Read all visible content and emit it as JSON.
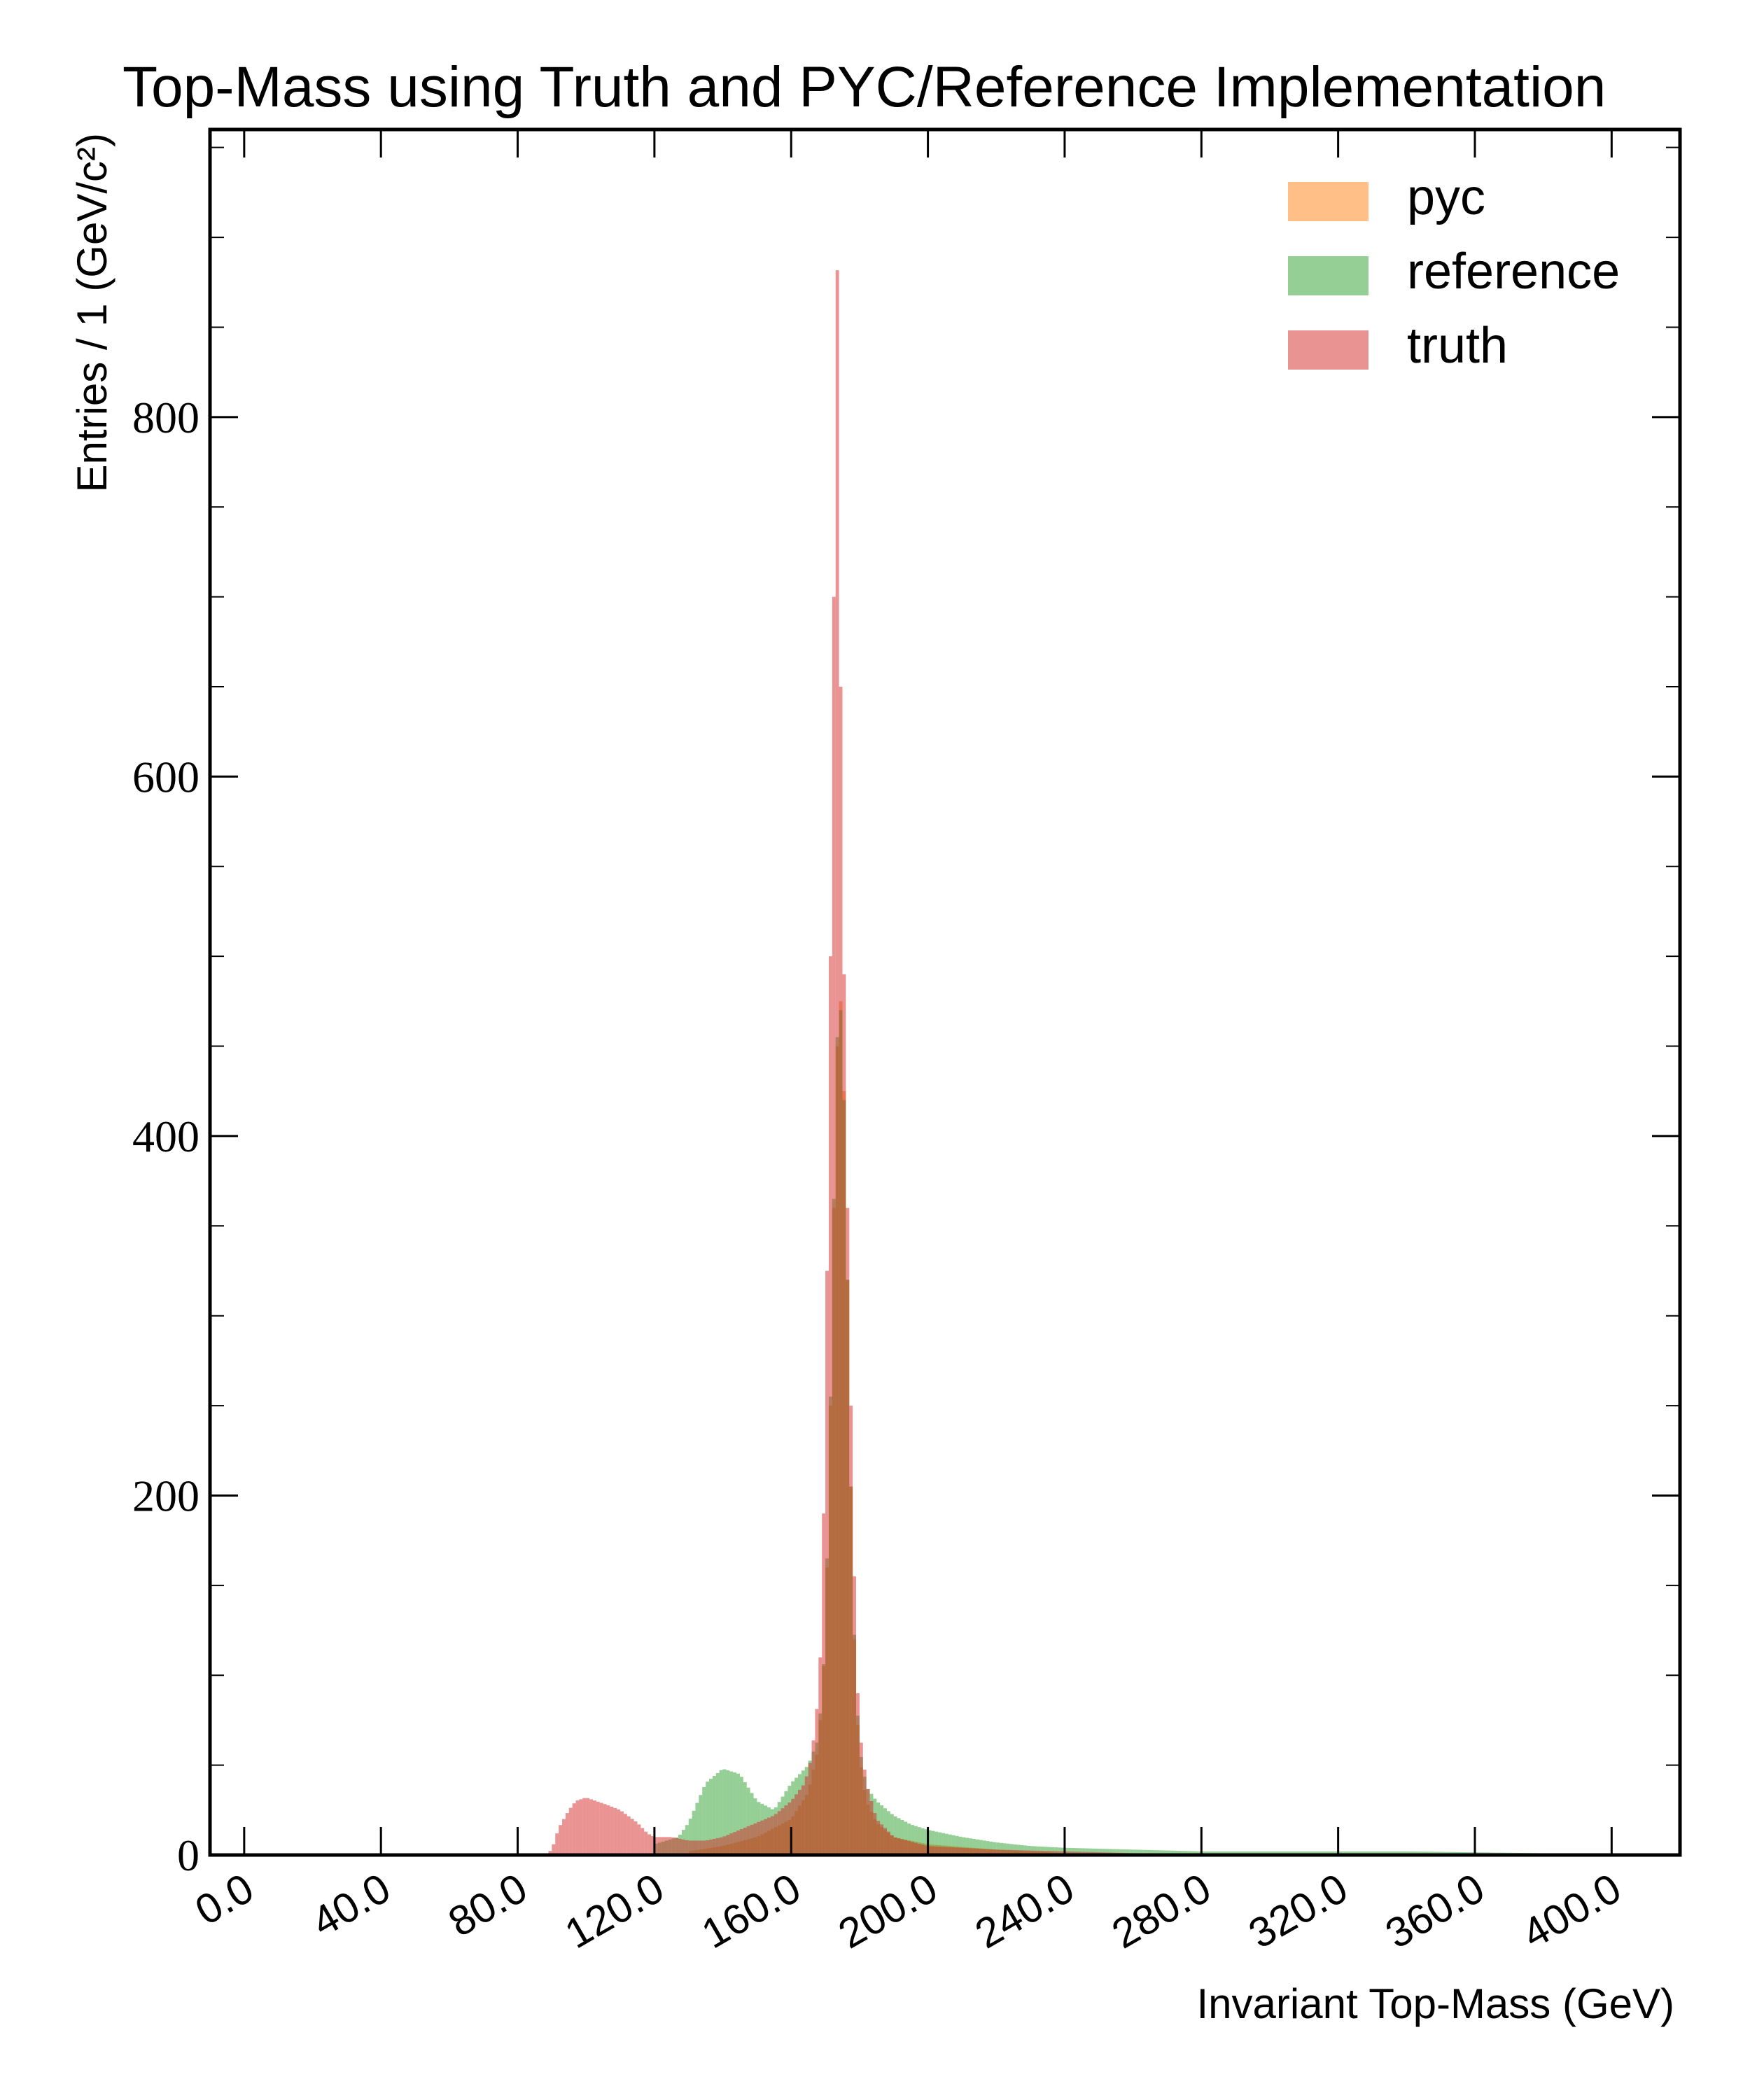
{
  "chart_data": {
    "type": "histogram",
    "title": "Top-Mass using Truth and PYC/Reference Implementation",
    "xlabel": "Invariant Top-Mass (GeV)",
    "ylabel": "Entries / 1 (GeV/c²)",
    "xlim": [
      -10,
      420
    ],
    "ylim": [
      0,
      960
    ],
    "xticks": [
      0,
      40,
      80,
      120,
      160,
      200,
      240,
      280,
      320,
      360,
      400
    ],
    "xtick_labels": [
      "0.0",
      "40.0",
      "80.0",
      "120.0",
      "160.0",
      "200.0",
      "240.0",
      "280.0",
      "320.0",
      "360.0",
      "400.0"
    ],
    "yticks": [
      0,
      200,
      400,
      600,
      800
    ],
    "ytick_labels": [
      "0",
      "200",
      "400",
      "600",
      "800"
    ],
    "bin_width": 1,
    "legend_position": "top-right",
    "grid": false,
    "series": [
      {
        "name": "pyc",
        "color": "#ff7f0e",
        "opacity": 0.5,
        "points": [
          [
            130,
            2
          ],
          [
            140,
            5
          ],
          [
            150,
            10
          ],
          [
            160,
            20
          ],
          [
            165,
            35
          ],
          [
            168,
            60
          ],
          [
            170,
            120
          ],
          [
            171,
            200
          ],
          [
            172,
            300
          ],
          [
            173,
            420
          ],
          [
            174,
            480
          ],
          [
            175,
            470
          ],
          [
            176,
            380
          ],
          [
            177,
            260
          ],
          [
            178,
            150
          ],
          [
            179,
            90
          ],
          [
            180,
            55
          ],
          [
            182,
            30
          ],
          [
            185,
            18
          ],
          [
            190,
            10
          ],
          [
            200,
            6
          ],
          [
            220,
            3
          ],
          [
            240,
            1
          ],
          [
            260,
            0
          ]
        ]
      },
      {
        "name": "reference",
        "color": "#2ca02c",
        "opacity": 0.5,
        "points": [
          [
            120,
            6
          ],
          [
            127,
            10
          ],
          [
            130,
            18
          ],
          [
            135,
            40
          ],
          [
            140,
            48
          ],
          [
            145,
            45
          ],
          [
            150,
            30
          ],
          [
            155,
            25
          ],
          [
            160,
            40
          ],
          [
            165,
            50
          ],
          [
            168,
            65
          ],
          [
            170,
            120
          ],
          [
            171,
            210
          ],
          [
            172,
            300
          ],
          [
            173,
            430
          ],
          [
            174,
            480
          ],
          [
            175,
            460
          ],
          [
            176,
            380
          ],
          [
            177,
            260
          ],
          [
            178,
            150
          ],
          [
            179,
            95
          ],
          [
            180,
            60
          ],
          [
            182,
            38
          ],
          [
            185,
            30
          ],
          [
            190,
            22
          ],
          [
            195,
            17
          ],
          [
            200,
            14
          ],
          [
            210,
            10
          ],
          [
            220,
            7
          ],
          [
            230,
            5
          ],
          [
            240,
            4
          ],
          [
            260,
            3
          ],
          [
            280,
            2
          ],
          [
            300,
            2
          ],
          [
            340,
            2
          ],
          [
            380,
            1
          ],
          [
            399,
            1
          ]
        ]
      },
      {
        "name": "truth",
        "color": "#d62728",
        "opacity": 0.5,
        "points": [
          [
            88,
            0
          ],
          [
            90,
            3
          ],
          [
            92,
            15
          ],
          [
            95,
            25
          ],
          [
            97,
            30
          ],
          [
            100,
            32
          ],
          [
            103,
            30
          ],
          [
            106,
            28
          ],
          [
            110,
            25
          ],
          [
            115,
            18
          ],
          [
            118,
            12
          ],
          [
            120,
            10
          ],
          [
            125,
            10
          ],
          [
            130,
            8
          ],
          [
            135,
            8
          ],
          [
            140,
            10
          ],
          [
            145,
            14
          ],
          [
            150,
            18
          ],
          [
            155,
            22
          ],
          [
            160,
            30
          ],
          [
            164,
            40
          ],
          [
            166,
            55
          ],
          [
            168,
            90
          ],
          [
            169,
            130
          ],
          [
            170,
            250
          ],
          [
            171,
            400
          ],
          [
            172,
            600
          ],
          [
            172.8,
            760
          ],
          [
            173.4,
            910
          ],
          [
            174,
            740
          ],
          [
            175,
            560
          ],
          [
            176,
            420
          ],
          [
            177,
            300
          ],
          [
            178,
            200
          ],
          [
            179,
            110
          ],
          [
            180,
            70
          ],
          [
            182,
            40
          ],
          [
            185,
            20
          ],
          [
            190,
            10
          ],
          [
            200,
            5
          ],
          [
            220,
            3
          ],
          [
            240,
            2
          ],
          [
            260,
            1
          ],
          [
            280,
            0
          ]
        ]
      }
    ]
  }
}
